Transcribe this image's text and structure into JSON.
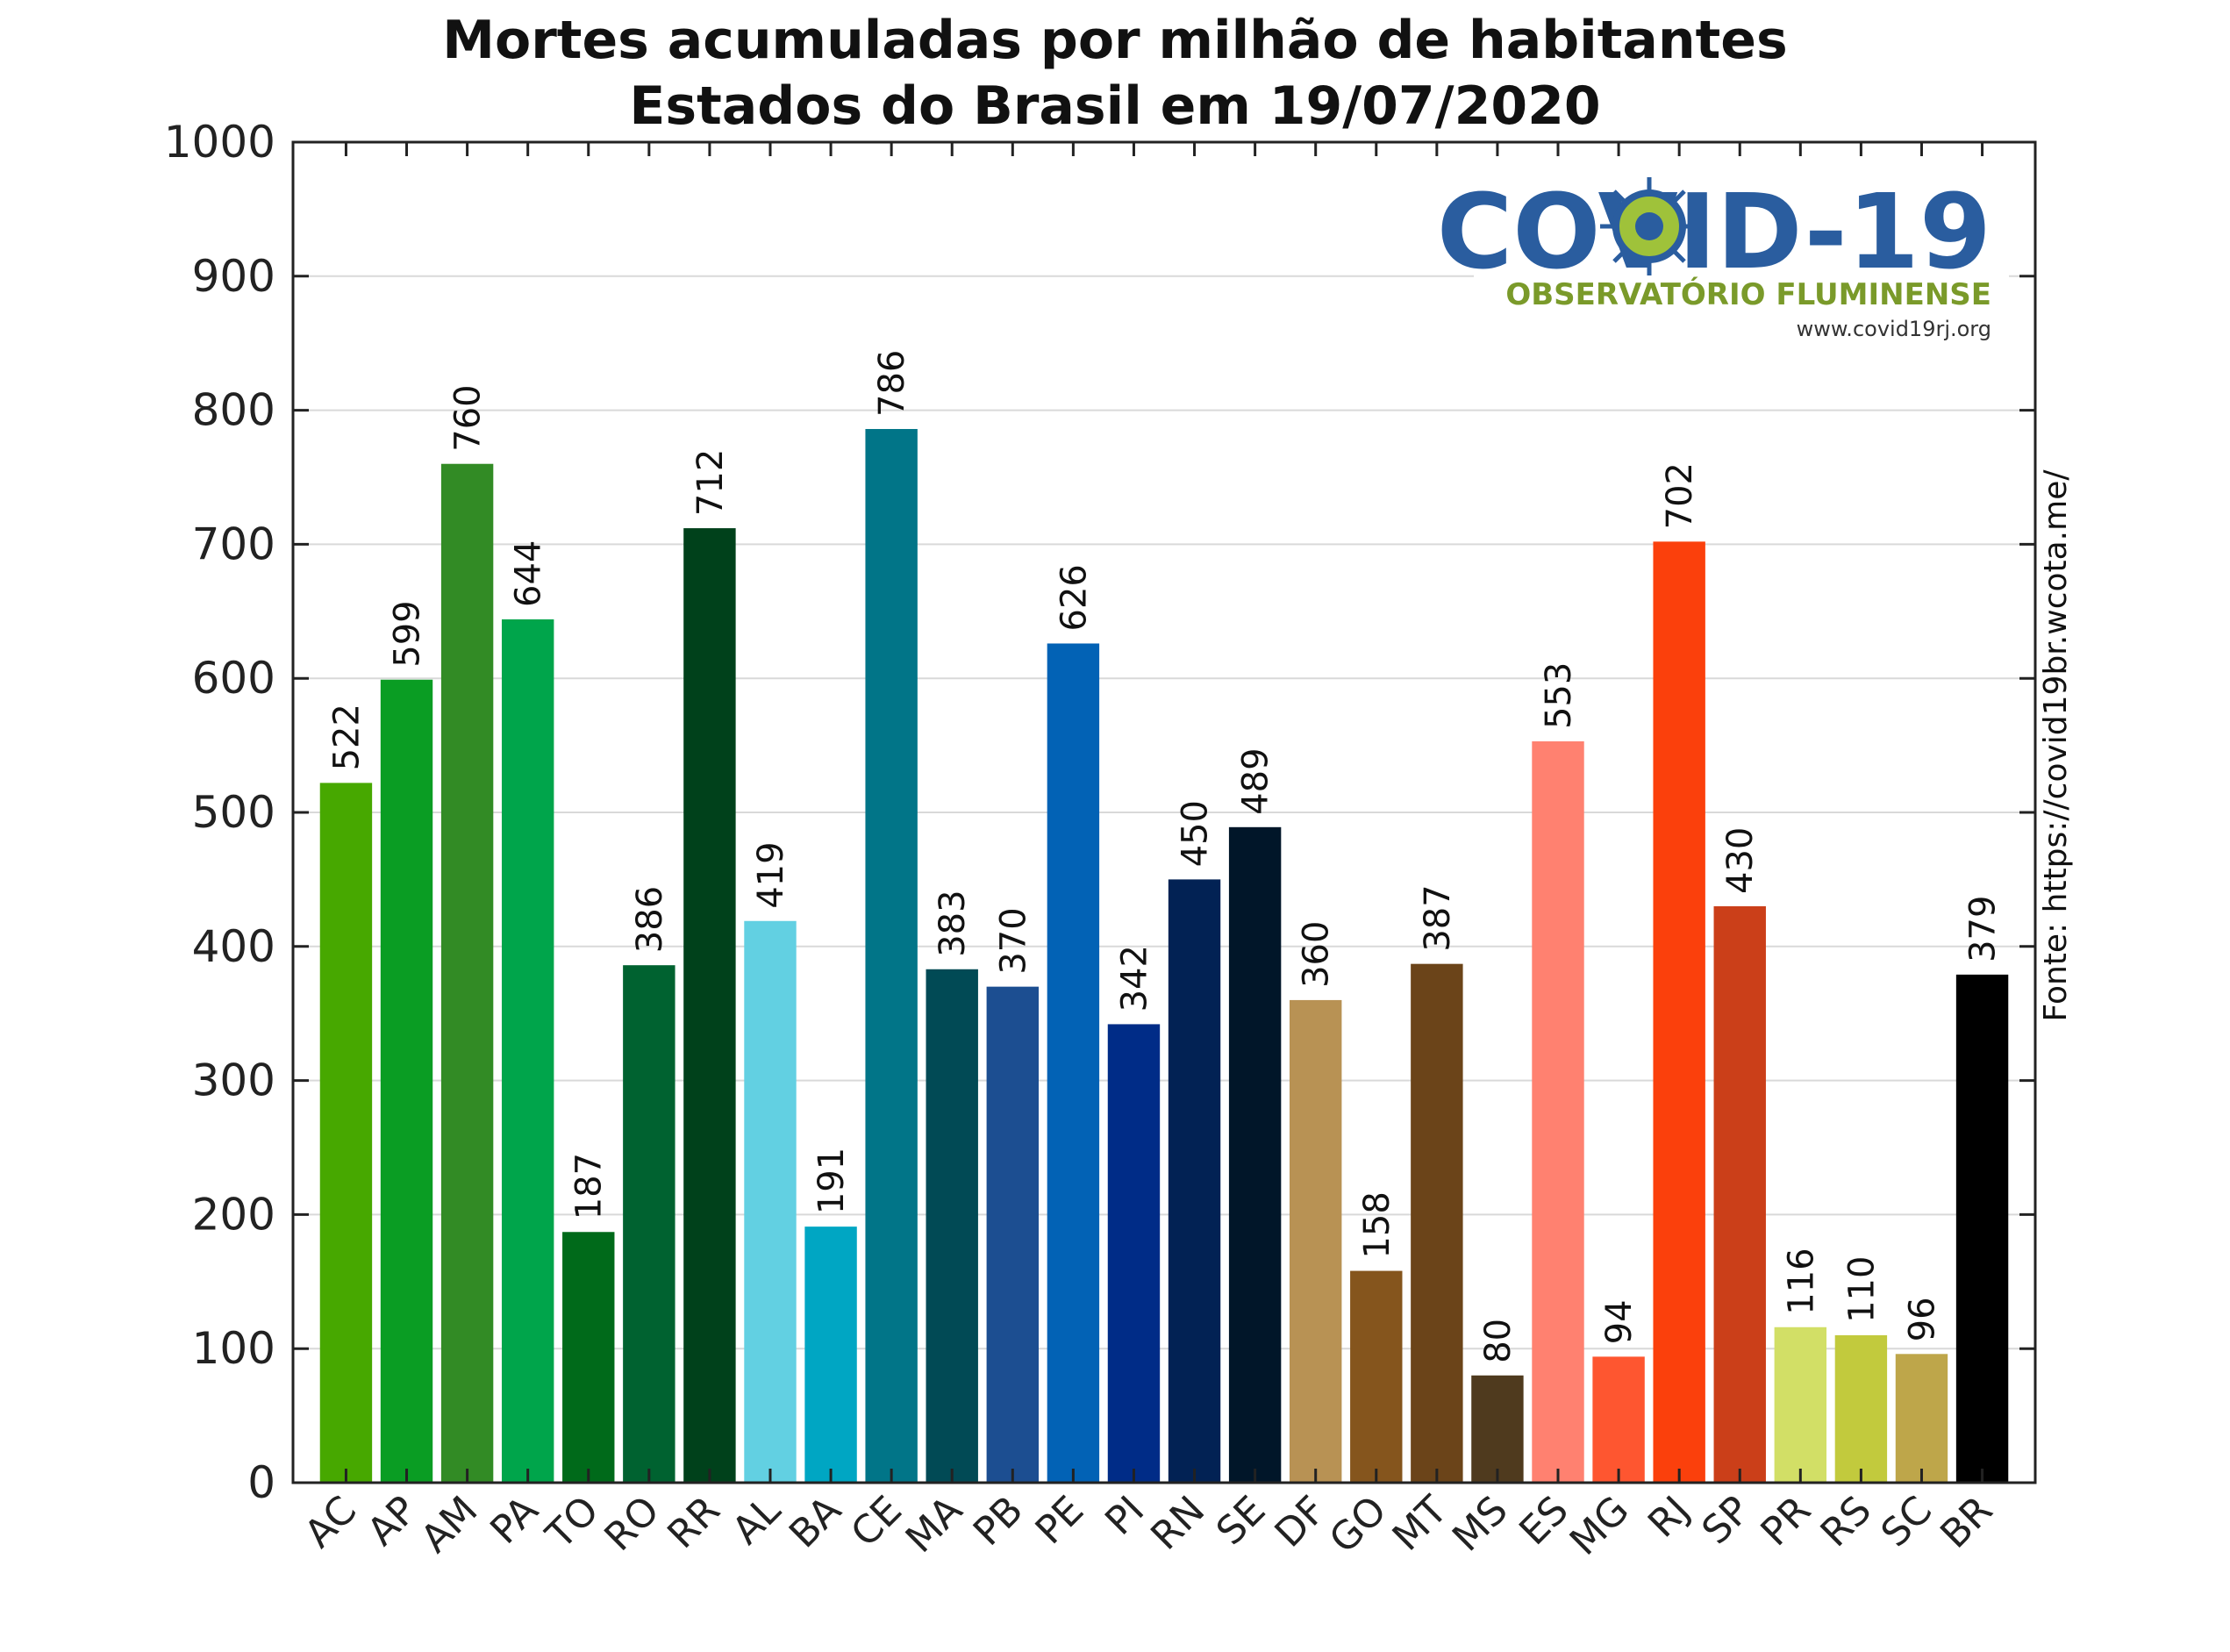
{
  "chart_data": {
    "type": "bar",
    "title": [
      "Mortes acumuladas por milhão de habitantes",
      "Estados do Brasil em 19/07/2020"
    ],
    "xlabel": "",
    "ylabel": "",
    "ylim": [
      0,
      1000
    ],
    "yticks": [
      0,
      100,
      200,
      300,
      400,
      500,
      600,
      700,
      800,
      900,
      1000
    ],
    "grid": true,
    "categories": [
      "AC",
      "AP",
      "AM",
      "PA",
      "TO",
      "RO",
      "RR",
      "AL",
      "BA",
      "CE",
      "MA",
      "PB",
      "PE",
      "PI",
      "RN",
      "SE",
      "DF",
      "GO",
      "MT",
      "MS",
      "ES",
      "MG",
      "RJ",
      "SP",
      "PR",
      "RS",
      "SC",
      "BR"
    ],
    "values": [
      522,
      599,
      760,
      644,
      187,
      386,
      712,
      419,
      191,
      786,
      383,
      370,
      626,
      342,
      450,
      489,
      360,
      158,
      387,
      80,
      553,
      94,
      702,
      430,
      116,
      110,
      96,
      379
    ],
    "colors": [
      "#47a800",
      "#0a9d23",
      "#328b25",
      "#00a54b",
      "#006a1a",
      "#006230",
      "#00411b",
      "#62d0e2",
      "#00a6c3",
      "#017588",
      "#014a55",
      "#1c4e91",
      "#0262b5",
      "#002c87",
      "#022254",
      "#011629",
      "#b89254",
      "#85551d",
      "#6b4419",
      "#4f3a1e",
      "#ff8170",
      "#fe5630",
      "#fb400c",
      "#cb3f19",
      "#d2df66",
      "#c2ca3d",
      "#bea64a",
      "#000000"
    ]
  },
  "source_note": "Fonte: https://covid19br.wcota.me/",
  "logo": {
    "title": "COVID-19",
    "subtitle": "OBSERVATÓRIO FLUMINENSE",
    "url": "www.covid19rj.org"
  }
}
